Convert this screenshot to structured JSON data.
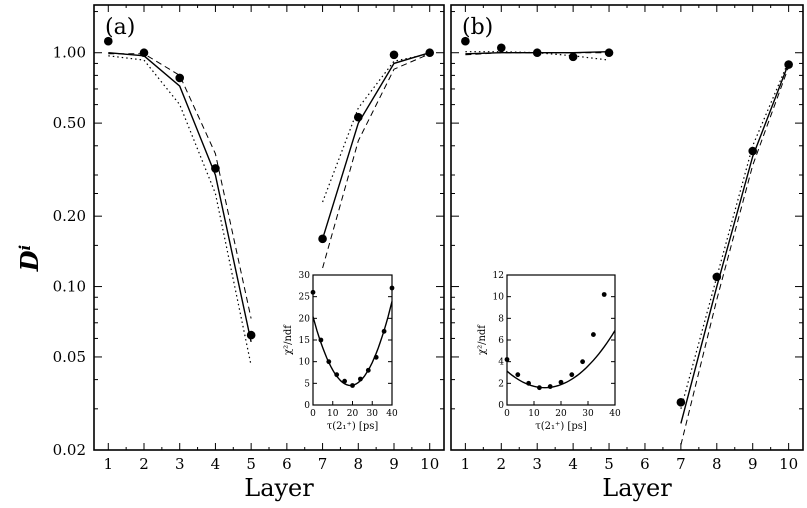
{
  "chart_data": [
    {
      "type": "scatter",
      "panel_label": "(a)",
      "xlabel": "Layer",
      "ylabel": "D",
      "ylabel_superscript": "i",
      "yscale": "log",
      "xlim": [
        0.6,
        10.4
      ],
      "ylim": [
        0.02,
        1.6
      ],
      "x_ticks": [
        "1",
        "2",
        "3",
        "4",
        "5",
        "6",
        "7",
        "8",
        "9",
        "10"
      ],
      "y_ticks": [
        "0.02",
        "0.05",
        "0.10",
        "0.20",
        "0.50",
        "1.00"
      ],
      "y_tick_values": [
        0.02,
        0.05,
        0.1,
        0.2,
        0.5,
        1.0
      ],
      "points": [
        {
          "x": 1,
          "y": 1.12
        },
        {
          "x": 2,
          "y": 1.0
        },
        {
          "x": 3,
          "y": 0.78
        },
        {
          "x": 4,
          "y": 0.32
        },
        {
          "x": 5,
          "y": 0.062
        },
        {
          "x": 7,
          "y": 0.16
        },
        {
          "x": 8,
          "y": 0.53
        },
        {
          "x": 9,
          "y": 0.98
        },
        {
          "x": 10,
          "y": 1.0
        }
      ],
      "fits": {
        "solid": [
          [
            [
              1,
              1.0
            ],
            [
              2,
              0.97
            ],
            [
              3,
              0.72
            ],
            [
              4,
              0.3
            ],
            [
              5,
              0.058
            ]
          ],
          [
            [
              7,
              0.16
            ],
            [
              8,
              0.5
            ],
            [
              9,
              0.9
            ],
            [
              10,
              1.0
            ]
          ]
        ],
        "dashed": [
          [
            [
              1,
              0.99
            ],
            [
              2,
              0.99
            ],
            [
              3,
              0.8
            ],
            [
              4,
              0.37
            ],
            [
              5,
              0.073
            ]
          ],
          [
            [
              7,
              0.12
            ],
            [
              8,
              0.42
            ],
            [
              9,
              0.85
            ],
            [
              10,
              0.99
            ]
          ]
        ],
        "dotted": [
          [
            [
              1,
              0.97
            ],
            [
              2,
              0.93
            ],
            [
              3,
              0.6
            ],
            [
              4,
              0.25
            ],
            [
              5,
              0.046
            ]
          ],
          [
            [
              7,
              0.23
            ],
            [
              8,
              0.58
            ],
            [
              9,
              0.92
            ],
            [
              10,
              0.99
            ]
          ]
        ]
      },
      "inset": {
        "xlabel": "τ(2₁⁺) [ps]",
        "ylabel": "χ²/ndf",
        "xlim": [
          0,
          40
        ],
        "ylim": [
          0,
          30
        ],
        "x_ticks": [
          "0",
          "10",
          "20",
          "30",
          "40"
        ],
        "y_ticks": [
          "0",
          "5",
          "10",
          "15",
          "20",
          "25",
          "30"
        ],
        "points": [
          {
            "x": 0,
            "y": 26
          },
          {
            "x": 4,
            "y": 15
          },
          {
            "x": 8,
            "y": 10
          },
          {
            "x": 12,
            "y": 7
          },
          {
            "x": 16,
            "y": 5.5
          },
          {
            "x": 20,
            "y": 4.5
          },
          {
            "x": 24,
            "y": 6
          },
          {
            "x": 28,
            "y": 8
          },
          {
            "x": 32,
            "y": 11
          },
          {
            "x": 36,
            "y": 17
          },
          {
            "x": 40,
            "y": 27
          }
        ],
        "curve": {
          "a": 0.044,
          "x0": 19,
          "c": 4.5
        }
      }
    },
    {
      "type": "scatter",
      "panel_label": "(b)",
      "xlabel": "Layer",
      "yscale": "log",
      "xlim": [
        0.6,
        10.4
      ],
      "ylim": [
        0.02,
        1.6
      ],
      "x_ticks": [
        "1",
        "2",
        "3",
        "4",
        "5",
        "6",
        "7",
        "8",
        "9",
        "10"
      ],
      "y_tick_values": [
        0.02,
        0.05,
        0.1,
        0.2,
        0.5,
        1.0
      ],
      "points": [
        {
          "x": 1,
          "y": 1.12
        },
        {
          "x": 2,
          "y": 1.05
        },
        {
          "x": 3,
          "y": 1.0
        },
        {
          "x": 4,
          "y": 0.96
        },
        {
          "x": 5,
          "y": 1.0
        },
        {
          "x": 7,
          "y": 0.032
        },
        {
          "x": 8,
          "y": 0.11
        },
        {
          "x": 9,
          "y": 0.38
        },
        {
          "x": 10,
          "y": 0.89
        }
      ],
      "fits": {
        "solid": [
          [
            [
              1,
              0.99
            ],
            [
              2,
              1.0
            ],
            [
              3,
              1.0
            ],
            [
              4,
              1.0
            ],
            [
              5,
              1.01
            ]
          ],
          [
            [
              7,
              0.026
            ],
            [
              8,
              0.1
            ],
            [
              9,
              0.36
            ],
            [
              10,
              0.9
            ]
          ]
        ],
        "dashed": [
          [
            [
              1,
              0.98
            ],
            [
              2,
              1.0
            ],
            [
              3,
              1.0
            ],
            [
              4,
              1.0
            ],
            [
              5,
              1.0
            ]
          ],
          [
            [
              7,
              0.021
            ],
            [
              8,
              0.088
            ],
            [
              9,
              0.33
            ],
            [
              10,
              0.87
            ]
          ]
        ],
        "dotted": [
          [
            [
              1,
              1.01
            ],
            [
              2,
              1.01
            ],
            [
              3,
              1.0
            ],
            [
              4,
              0.97
            ],
            [
              5,
              0.93
            ]
          ],
          [
            [
              7,
              0.03
            ],
            [
              8,
              0.11
            ],
            [
              9,
              0.4
            ],
            [
              10,
              0.92
            ]
          ]
        ]
      },
      "inset": {
        "xlabel": "τ(2₁⁺) [ps]",
        "ylabel": "χ²/ndf",
        "xlim": [
          0,
          40
        ],
        "ylim": [
          0,
          12
        ],
        "x_ticks": [
          "0",
          "10",
          "20",
          "30",
          "40"
        ],
        "y_ticks": [
          "0",
          "2",
          "4",
          "6",
          "8",
          "10",
          "12"
        ],
        "points": [
          {
            "x": 0,
            "y": 4.2
          },
          {
            "x": 4,
            "y": 2.8
          },
          {
            "x": 8,
            "y": 2.0
          },
          {
            "x": 12,
            "y": 1.6
          },
          {
            "x": 16,
            "y": 1.7
          },
          {
            "x": 20,
            "y": 2.1
          },
          {
            "x": 24,
            "y": 2.8
          },
          {
            "x": 28,
            "y": 4.0
          },
          {
            "x": 32,
            "y": 6.5
          },
          {
            "x": 36,
            "y": 10.2
          }
        ],
        "curve": {
          "a": 0.0078,
          "x0": 14,
          "c": 1.6
        }
      }
    }
  ]
}
